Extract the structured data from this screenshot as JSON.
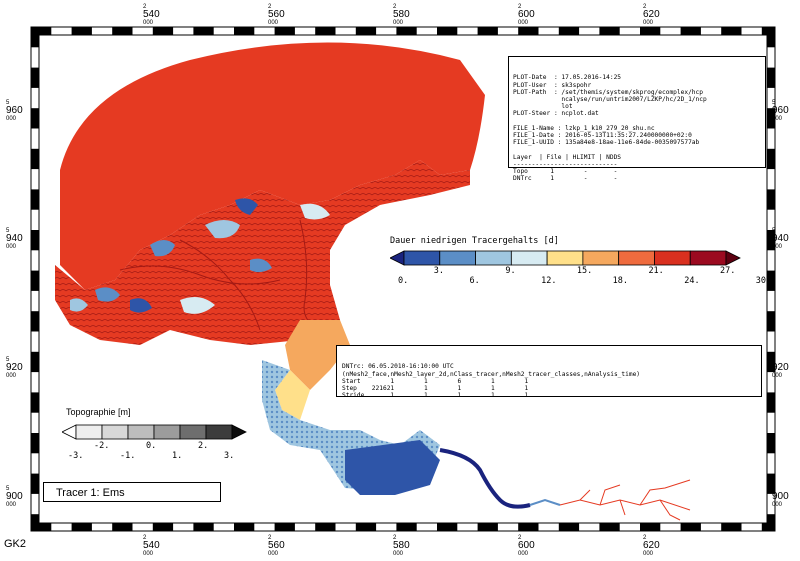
{
  "frame": {
    "x_ticks_top": [
      {
        "main": "2",
        "val": "540",
        "sub": "000"
      },
      {
        "main": "2",
        "val": "560",
        "sub": "000"
      },
      {
        "main": "2",
        "val": "580",
        "sub": "000"
      },
      {
        "main": "2",
        "val": "600",
        "sub": "000"
      },
      {
        "main": "2",
        "val": "620",
        "sub": "000"
      }
    ],
    "y_ticks": [
      {
        "main": "5",
        "val": "960",
        "sub": "000"
      },
      {
        "main": "5",
        "val": "940",
        "sub": "000"
      },
      {
        "main": "5",
        "val": "920",
        "sub": "000"
      },
      {
        "main": "5",
        "val": "900",
        "sub": "000"
      }
    ],
    "projection_label": "GK2"
  },
  "plot_info": {
    "lines": [
      "PLOT-Date  : 17.05.2016-14:25",
      "PLOT-User  : sk3spohr",
      "PLOT-Path  : /set/themis/system/skprog/ecomplex/hcp",
      "             ncalyse/run/untrim2007/LZKP/hc/2D_1/ncp",
      "             lot",
      "PLOT-Steer : ncplot.dat",
      "",
      "FILE_1-Name : lzkp_1_k10_279_20_shu.nc",
      "FILE_1-Date : 2016-05-13T11:35:27.240000000+02:0",
      "FILE_1-UUID : 135a84e8-18ae-11e6-84de-0035097577ab",
      "",
      "Layer  | File | HLIMIT | NDDS",
      "----------------------------",
      "Topo      1        -       -",
      "DNTrc     1        -       -"
    ]
  },
  "dntrc_info": {
    "lines": [
      "DNTrc: 06.05.2010-16:10:00 UTC",
      "(nMesh2_face,nMesh2_layer_2d,nClass_tracer,nMesh2_tracer_classes,nAnalysis_time)",
      "Start        1        1        6        1        1",
      "Step    221621        1        1        1        1",
      "Stride       1        1        1        1        1"
    ]
  },
  "tracer_legend": {
    "title": "Dauer niedrigen Tracergehalts [d]",
    "colors": [
      "#1a237e",
      "#2e55a8",
      "#5b8ec6",
      "#9fc6e0",
      "#d7ebf2",
      "#ffe08a",
      "#f5a85e",
      "#ef6b3e",
      "#d9301f",
      "#9b0a20",
      "#5c0010"
    ],
    "labels_lower": [
      "0.",
      "6.",
      "12.",
      "18.",
      "24.",
      "30."
    ],
    "labels_upper": [
      "3.",
      "9.",
      "15.",
      "21.",
      "27."
    ]
  },
  "topo_legend": {
    "title": "Topographie [m]",
    "colors": [
      "#ffffff",
      "#eeeeee",
      "#d8d8d8",
      "#bdbdbd",
      "#9c9c9c",
      "#6e6e6e",
      "#3c3c3c",
      "#0d0d0d"
    ],
    "labels_lower": [
      "-3.",
      "-1.",
      "1.",
      "3."
    ],
    "labels_upper": [
      "-2.",
      "0.",
      "2."
    ]
  },
  "tracer_label": "Tracer 1: Ems"
}
